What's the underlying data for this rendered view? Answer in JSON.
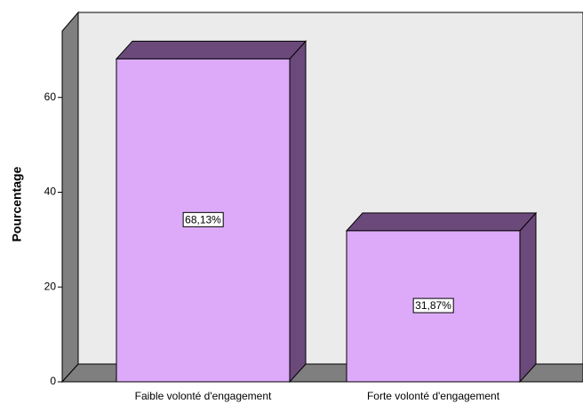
{
  "chart_data": {
    "type": "bar3d",
    "y_label": "Pourcentage",
    "categories": [
      "Faible volonté d'engagement",
      "Forte volonté d'engagement"
    ],
    "values": [
      68.13,
      31.87
    ],
    "value_labels": [
      "68,13%",
      "31,87%"
    ],
    "color": "#dcaaf8",
    "ylim": [
      0,
      74
    ],
    "yticks": [
      0,
      20,
      40,
      60
    ]
  }
}
